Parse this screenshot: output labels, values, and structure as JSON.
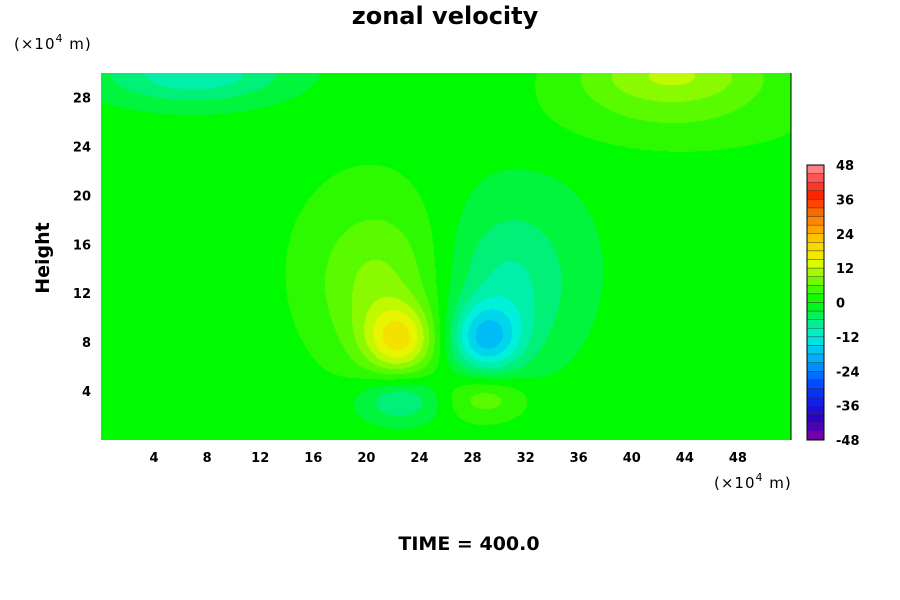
{
  "chart_data": {
    "type": "heatmap",
    "title": "zonal velocity",
    "ylabel": "Height",
    "xlabel": "",
    "x_unit": "(×10⁴ m)",
    "y_unit": "(×10⁴ m)",
    "x_unit_base": "(×10",
    "x_unit_exp": "4",
    "x_unit_tail": " m)",
    "y_unit_base": "(×10",
    "y_unit_exp": "4",
    "y_unit_tail": " m)",
    "footer": "TIME = 400.0",
    "xlim": [
      0,
      52
    ],
    "ylim": [
      0,
      30
    ],
    "x_ticks": [
      4,
      8,
      12,
      16,
      20,
      24,
      28,
      32,
      36,
      40,
      44,
      48
    ],
    "y_ticks": [
      4,
      8,
      12,
      16,
      20,
      24,
      28
    ],
    "colorbar": {
      "min": -48,
      "max": 48,
      "step": 3,
      "tick_labels": [
        48,
        36,
        24,
        12,
        0,
        -12,
        -24,
        -36,
        -48
      ]
    },
    "features": [
      {
        "x": 22.5,
        "y": 8.2,
        "value": 14,
        "sx": 2.6,
        "sy": 2.8
      },
      {
        "x": 21.0,
        "y": 12.0,
        "value": 6,
        "sx": 4.5,
        "sy": 6.0
      },
      {
        "x": 21.0,
        "y": 15.0,
        "value": 3,
        "sx": 7.0,
        "sy": 8.5
      },
      {
        "x": 29.0,
        "y": 8.3,
        "value": -14,
        "sx": 2.6,
        "sy": 2.8
      },
      {
        "x": 30.5,
        "y": 12.0,
        "value": -6,
        "sx": 4.5,
        "sy": 6.0
      },
      {
        "x": 31.0,
        "y": 15.0,
        "value": -3,
        "sx": 7.0,
        "sy": 8.5
      },
      {
        "x": 22.5,
        "y": 3.3,
        "value": -8,
        "sx": 3.2,
        "sy": 2.0
      },
      {
        "x": 29.0,
        "y": 3.5,
        "value": 7,
        "sx": 3.2,
        "sy": 2.0
      },
      {
        "x": 7.0,
        "y": 30.0,
        "value": -10,
        "sx": 7.0,
        "sy": 2.5
      },
      {
        "x": 43.0,
        "y": 30.0,
        "value": 10,
        "sx": 7.0,
        "sy": 2.5
      },
      {
        "x": 43.0,
        "y": 26.5,
        "value": 4,
        "sx": 10.0,
        "sy": 3.0
      }
    ],
    "colors": {
      "background": "#ffffff",
      "text": "#000000"
    }
  }
}
